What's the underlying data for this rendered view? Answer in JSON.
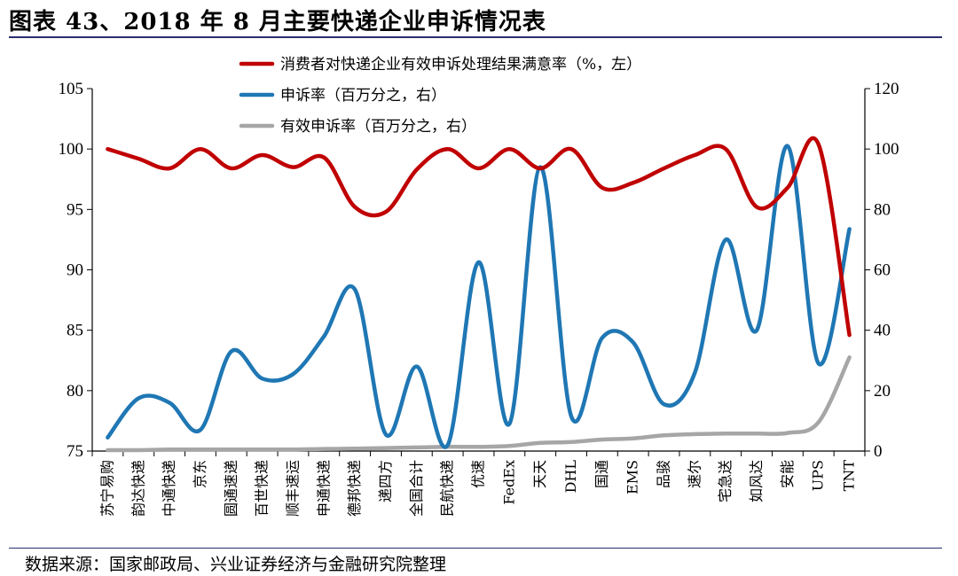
{
  "title": "图表 43、2018 年 8 月主要快递企业申诉情况表",
  "source": "数据来源：国家邮政局、兴业证券经济与金融研究院整理",
  "chart_data": {
    "type": "line",
    "categories": [
      "苏宁易购",
      "韵达快递",
      "中通快递",
      "京东",
      "圆通速递",
      "百世快递",
      "顺丰速运",
      "申通快递",
      "德邦快递",
      "递四方",
      "全国合计",
      "民航快递",
      "优速",
      "FedEx",
      "天天",
      "DHL",
      "国通",
      "EMS",
      "品骏",
      "速尔",
      "宅急送",
      "如风达",
      "安能",
      "UPS",
      "TNT"
    ],
    "y_left": {
      "min": 75,
      "max": 105,
      "ticks": [
        "75",
        "80",
        "85",
        "90",
        "95",
        "100",
        "105"
      ]
    },
    "y_right": {
      "min": 0,
      "max": 120,
      "ticks": [
        "0",
        "20",
        "40",
        "60",
        "80",
        "100",
        "120"
      ]
    },
    "grid": false,
    "legend_position": "top-center",
    "series": [
      {
        "name": "消费者对快递企业有效申诉处理结果满意率（%，左）",
        "axis": "left",
        "color": "#c00000",
        "values": [
          100,
          99.2,
          98.4,
          100,
          98.4,
          99.5,
          98.5,
          99.3,
          95.2,
          94.8,
          98.3,
          100,
          98.4,
          100,
          98.4,
          100,
          96.8,
          97.2,
          98.4,
          99.5,
          100,
          95.2,
          96.8,
          100.4,
          84.6
        ]
      },
      {
        "name": "申诉率（百万分之，右）",
        "axis": "right",
        "color": "#1f77b4",
        "values": [
          4.5,
          17.5,
          16,
          7,
          33,
          24,
          25.5,
          38,
          53.5,
          5.5,
          28,
          2,
          62.5,
          9,
          94,
          11.5,
          37.5,
          36,
          15.5,
          26,
          70,
          40,
          101,
          29,
          73.5
        ]
      },
      {
        "name": "有效申诉率（百万分之，右）",
        "axis": "right",
        "color": "#a6a6a6",
        "values": [
          0.3,
          0.3,
          0.5,
          0.5,
          0.5,
          0.5,
          0.5,
          0.7,
          0.8,
          1,
          1.2,
          1.4,
          1.4,
          1.7,
          2.7,
          3,
          3.8,
          4.2,
          5.2,
          5.6,
          5.8,
          5.8,
          6,
          9.5,
          31
        ]
      }
    ]
  }
}
